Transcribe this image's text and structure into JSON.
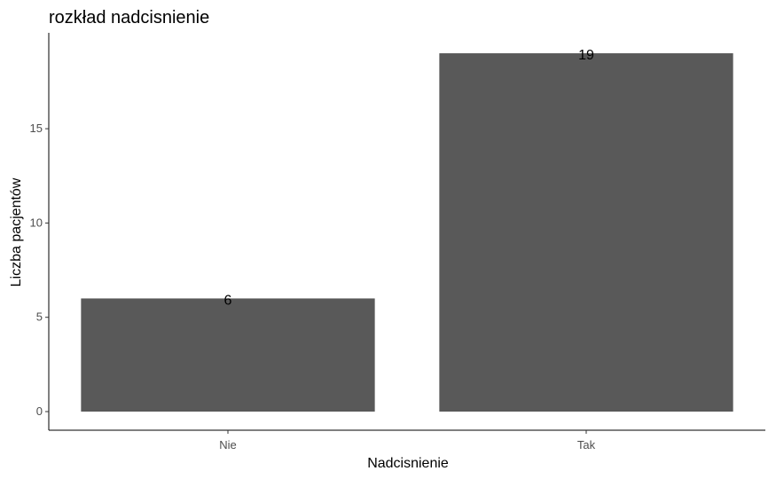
{
  "chart_data": {
    "type": "bar",
    "title": "rozkład nadcisnienie",
    "xlabel": "Nadcisnienie",
    "ylabel": "Liczba pacjentów",
    "categories": [
      "Nie",
      "Tak"
    ],
    "values": [
      6,
      19
    ],
    "data_labels": [
      "6",
      "19"
    ],
    "ylim": [
      0,
      20
    ],
    "yticks": [
      0,
      5,
      10,
      15
    ],
    "ytick_labels": [
      "0",
      "5",
      "10",
      "15"
    ],
    "grid": false,
    "legend": "none",
    "bar_color": "#595959",
    "axis_color": "#000000",
    "tick_label_color": "#4d4d4d"
  }
}
